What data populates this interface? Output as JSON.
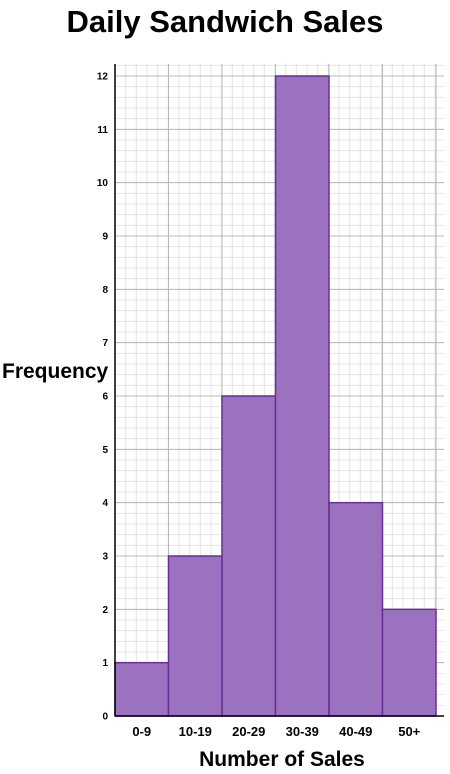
{
  "chart_data": {
    "type": "bar",
    "title": "Daily Sandwich Sales",
    "xlabel": "Number of Sales",
    "ylabel": "Frequency",
    "categories": [
      "0-9",
      "10-19",
      "20-29",
      "30-39",
      "40-49",
      "50+"
    ],
    "values": [
      1,
      3,
      6,
      12,
      4,
      2
    ],
    "ylim": [
      0,
      12
    ],
    "yticks": [
      0,
      1,
      2,
      3,
      4,
      5,
      6,
      7,
      8,
      9,
      10,
      11,
      12
    ],
    "grid": true,
    "bar_color": "#9b72c0",
    "bar_edge_color": "#6a2d96"
  }
}
